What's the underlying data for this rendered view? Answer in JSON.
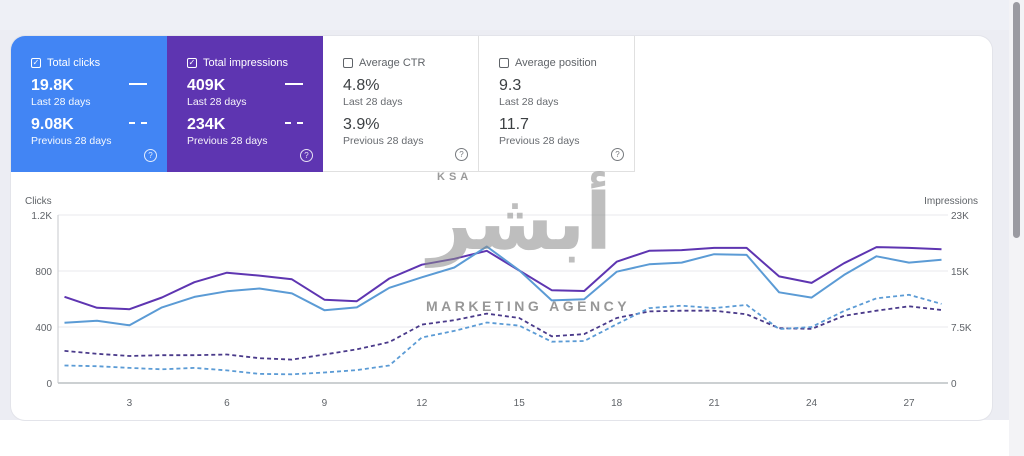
{
  "metrics": [
    {
      "key": "clicks",
      "label": "Total clicks",
      "checked": true,
      "current": "19.8K",
      "current_label": "Last 28 days",
      "previous": "9.08K",
      "previous_label": "Previous 28 days",
      "color": "#4285f4"
    },
    {
      "key": "impressions",
      "label": "Total impressions",
      "checked": true,
      "current": "409K",
      "current_label": "Last 28 days",
      "previous": "234K",
      "previous_label": "Previous 28 days",
      "color": "#5e35b1"
    },
    {
      "key": "ctr",
      "label": "Average CTR",
      "checked": false,
      "current": "4.8%",
      "current_label": "Last 28 days",
      "previous": "3.9%",
      "previous_label": "Previous 28 days"
    },
    {
      "key": "position",
      "label": "Average position",
      "checked": false,
      "current": "9.3",
      "current_label": "Last 28 days",
      "previous": "11.7",
      "previous_label": "Previous 28 days"
    }
  ],
  "icons": {
    "checked": "checkbox-checked-icon",
    "unchecked": "checkbox-unchecked-icon",
    "help": "help-circle-icon"
  },
  "watermark": {
    "ksa": "KSA",
    "arabic": "أبشر",
    "text": "MARKETING AGENCY"
  },
  "chart_data": {
    "type": "line",
    "xlabel": "",
    "y_left_label": "Clicks",
    "y_right_label": "Impressions",
    "y_left_ticks": [
      "0",
      "400",
      "800",
      "1.2K"
    ],
    "y_right_ticks": [
      "0",
      "7.5K",
      "15K",
      "23K"
    ],
    "y_left_lim": [
      0,
      1200
    ],
    "y_right_lim": [
      0,
      23000
    ],
    "x_ticks": [
      3,
      6,
      9,
      12,
      15,
      18,
      21,
      24,
      27
    ],
    "x": [
      1,
      2,
      3,
      4,
      5,
      6,
      7,
      8,
      9,
      10,
      11,
      12,
      13,
      14,
      15,
      16,
      17,
      18,
      19,
      20,
      21,
      22,
      23,
      24,
      25,
      26,
      27,
      28
    ],
    "series": [
      {
        "name": "Total impressions",
        "axis": "right",
        "style": "solid",
        "color": "#5e35b1",
        "values": [
          11800,
          10300,
          10100,
          11700,
          13800,
          15100,
          14700,
          14200,
          11400,
          11200,
          14300,
          16200,
          17000,
          18100,
          15400,
          12700,
          12600,
          16600,
          18100,
          18200,
          18500,
          18500,
          14600,
          13700,
          16400,
          18600,
          18500,
          18300
        ]
      },
      {
        "name": "Total clicks",
        "axis": "left",
        "style": "solid",
        "color": "#5b9bd5",
        "values": [
          430,
          445,
          412,
          540,
          615,
          655,
          675,
          640,
          520,
          540,
          680,
          755,
          825,
          975,
          805,
          590,
          598,
          795,
          848,
          860,
          920,
          915,
          648,
          610,
          772,
          905,
          860,
          880
        ]
      },
      {
        "name": "Impressions (previous)",
        "axis": "right",
        "style": "dashed",
        "color": "#4a3a8a",
        "values": [
          4400,
          4000,
          3700,
          3800,
          3800,
          3900,
          3400,
          3200,
          3900,
          4600,
          5600,
          8000,
          8600,
          9500,
          8900,
          6400,
          6700,
          8900,
          9800,
          9900,
          9900,
          9400,
          7500,
          7400,
          9200,
          9900,
          10500,
          10000
        ]
      },
      {
        "name": "Clicks (previous)",
        "axis": "left",
        "style": "dashed",
        "color": "#5b9bd5",
        "values": [
          125,
          120,
          108,
          98,
          108,
          90,
          65,
          62,
          75,
          92,
          125,
          325,
          372,
          432,
          410,
          295,
          300,
          420,
          535,
          552,
          535,
          558,
          385,
          400,
          515,
          605,
          630,
          565
        ]
      }
    ]
  }
}
